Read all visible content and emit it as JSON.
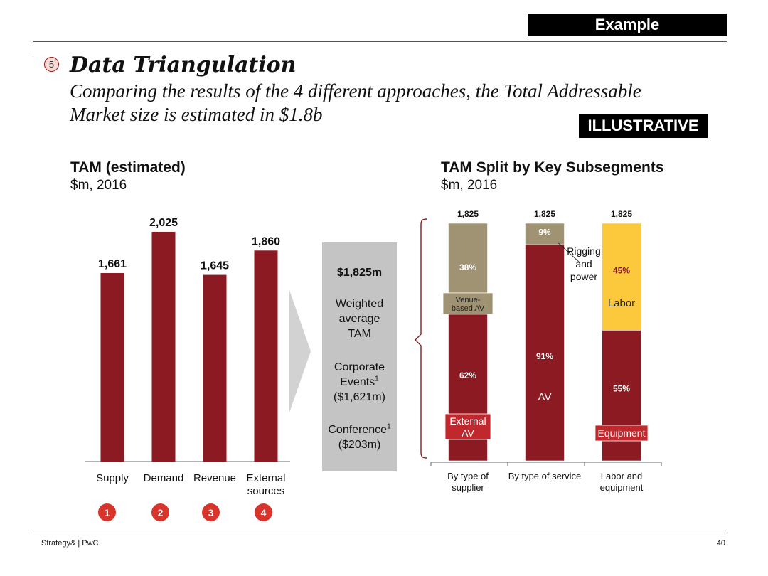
{
  "header": {
    "example_tag": "Example",
    "step_number": "5",
    "title": "Data Triangulation",
    "subtitle": "Comparing the results of the 4 different approaches, the Total Addressable Market size is estimated in $1.8b",
    "illustrative_tag": "ILLUSTRATIVE"
  },
  "left_chart": {
    "title": "TAM (estimated)",
    "subtitle": "$m, 2016",
    "step_numbers": [
      "1",
      "2",
      "3",
      "4"
    ]
  },
  "middle_box": {
    "value": "$1,825m",
    "line1": "Weighted",
    "line2": "average",
    "line3": "TAM",
    "corporate_line1": "Corporate",
    "corporate_line2": "Events",
    "corporate_footnote": "1",
    "corporate_value": "($1,621m)",
    "conference": "Conference",
    "conference_footnote": "1",
    "conference_value": "($203m)"
  },
  "right_chart": {
    "title": "TAM Split by Key Subsegments",
    "subtitle": "$m, 2016"
  },
  "chart_data": [
    {
      "type": "bar",
      "title": "TAM (estimated)",
      "subtitle": "$m, 2016",
      "categories": [
        "Supply",
        "Demand",
        "Revenue",
        "External sources"
      ],
      "values": [
        1661,
        2025,
        1645,
        1860
      ],
      "value_labels": [
        "1,661",
        "2,025",
        "1,645",
        "1,860"
      ],
      "ylim": [
        0,
        2100
      ],
      "color": "#8b1a23"
    },
    {
      "type": "bar",
      "stacked": true,
      "percent": true,
      "title": "TAM Split by Key Subsegments",
      "subtitle": "$m, 2016",
      "categories": [
        "By type of supplier",
        "By type of service",
        "Labor and equipment"
      ],
      "totals": [
        "1,825",
        "1,825",
        "1,825"
      ],
      "stacks": [
        {
          "segments": [
            {
              "name": "External AV",
              "value": 62,
              "label": "62%",
              "color": "#8b1a23"
            },
            {
              "name": "Venue-based AV",
              "value": 38,
              "label": "38%",
              "color": "#a09373"
            }
          ]
        },
        {
          "segments": [
            {
              "name": "AV",
              "value": 91,
              "label": "91%",
              "color": "#8b1a23"
            },
            {
              "name": "Rigging and power",
              "value": 9,
              "label": "9%",
              "color": "#a09373"
            }
          ]
        },
        {
          "segments": [
            {
              "name": "Equipment",
              "value": 55,
              "label": "55%",
              "color": "#8b1a23"
            },
            {
              "name": "Labor",
              "value": 45,
              "label": "45%",
              "color": "#fcc93c"
            }
          ]
        }
      ],
      "tag_color": "#c0282d"
    }
  ],
  "footer": {
    "source": "Strategy& | PwC",
    "page": "40"
  }
}
